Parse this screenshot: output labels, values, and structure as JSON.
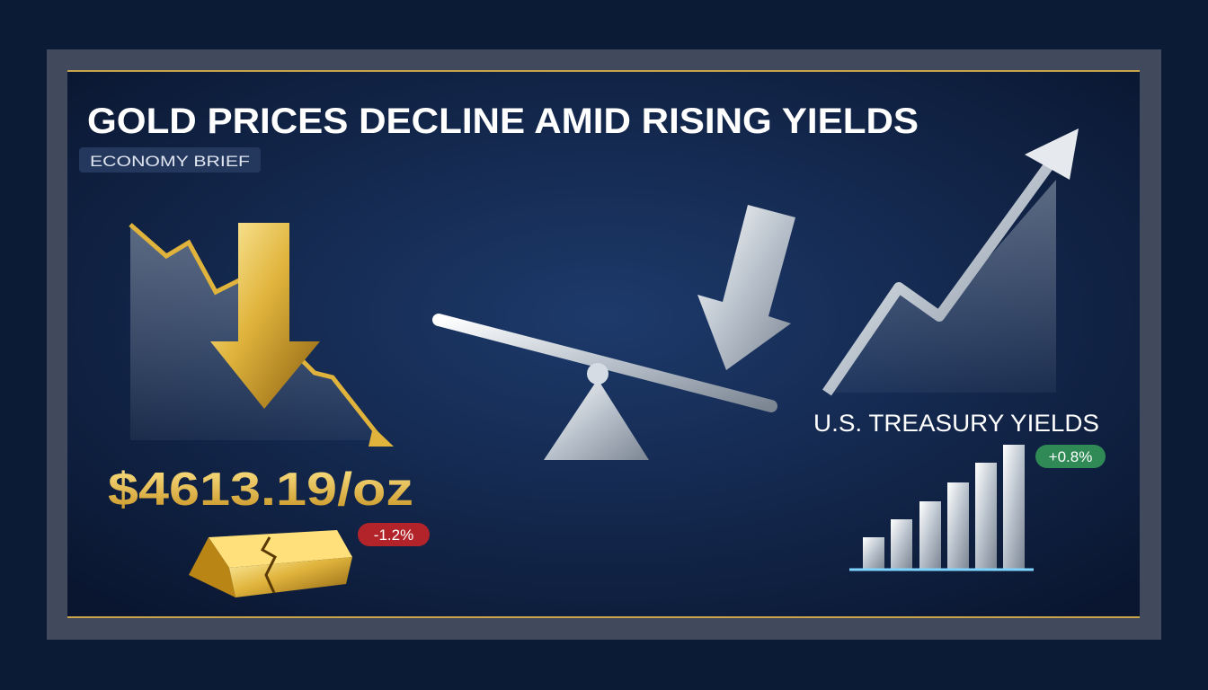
{
  "header": {
    "title": "GOLD PRICES DECLINE AMID RISING YIELDS",
    "subtitle": "ECONOMY BRIEF"
  },
  "gold": {
    "price": "$4613.19/oz",
    "change": "-1.2%"
  },
  "yields": {
    "label": "U.S. TREASURY YIELDS",
    "change": "+0.8%"
  }
}
